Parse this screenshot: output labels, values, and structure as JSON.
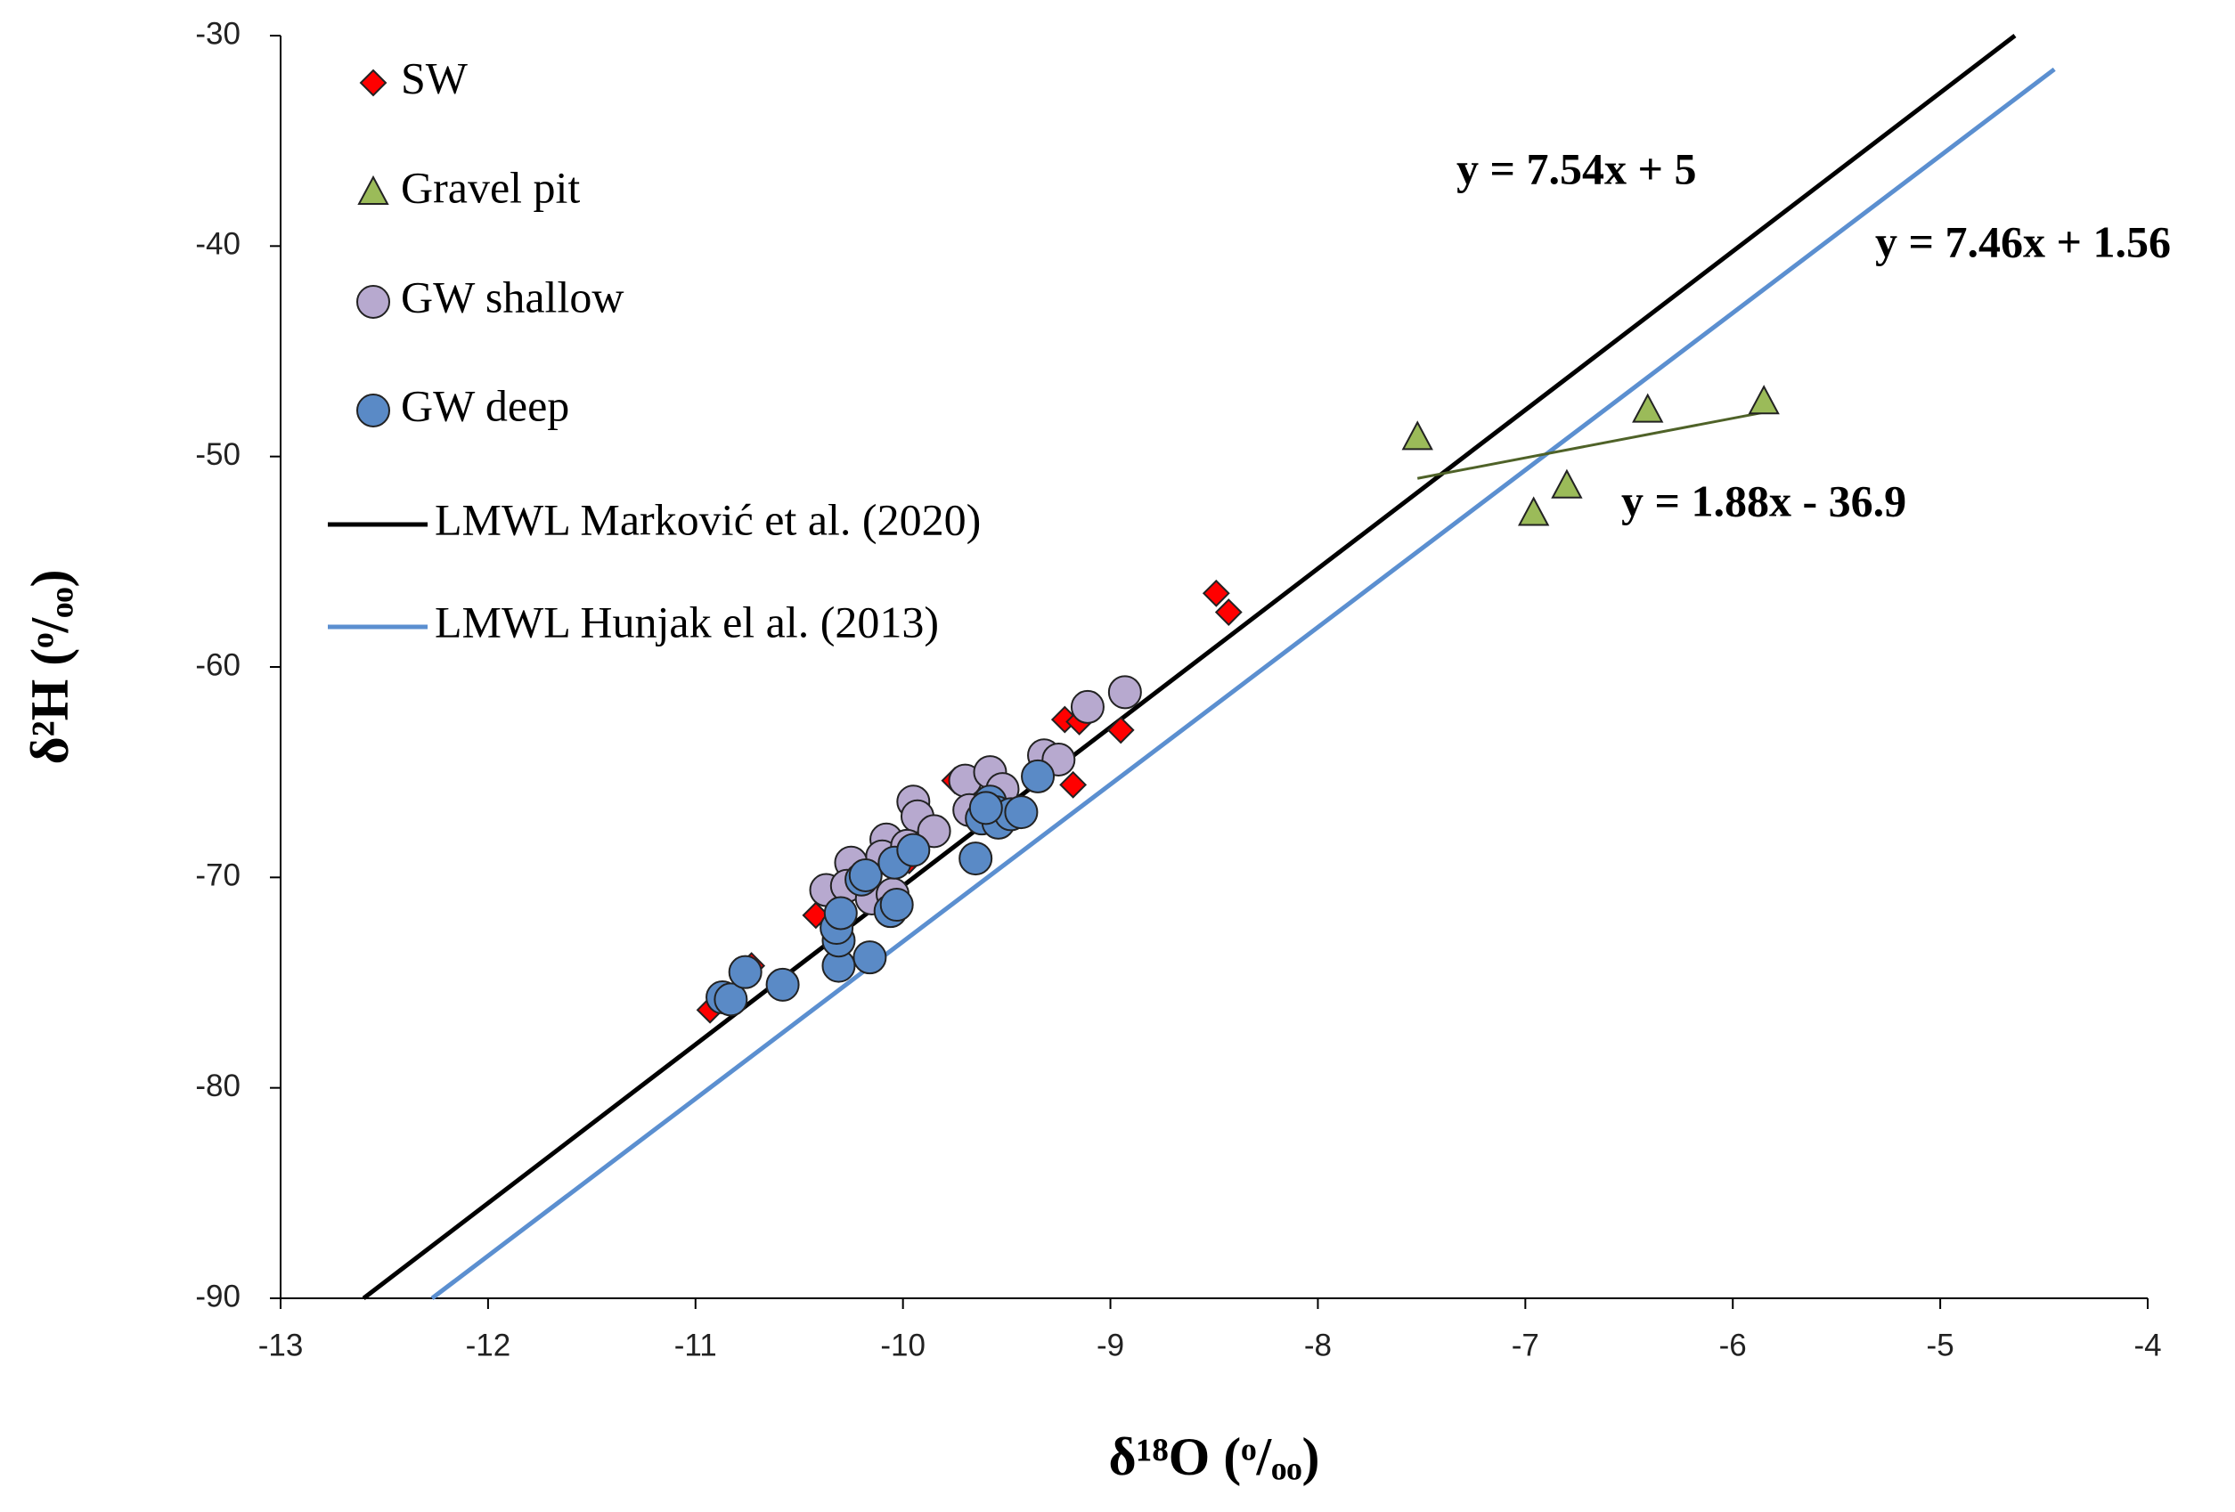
{
  "chart_data": {
    "type": "scatter",
    "x_label": "δ¹⁸O (ᵒ/ₒₒ)",
    "y_label": "δ²H (ᵒ/ₒₒ)",
    "xlim": [
      -13,
      -4
    ],
    "xticks": [
      -13,
      -12,
      -11,
      -10,
      -9,
      -8,
      -7,
      -6,
      -5,
      -4
    ],
    "ylim": [
      -90,
      -30
    ],
    "yticks": [
      -90,
      -80,
      -70,
      -60,
      -50,
      -40,
      -30
    ],
    "grid": false,
    "legend": "upper left",
    "series": [
      {
        "name": "SW",
        "marker": "diamond",
        "color": "#ff0000",
        "x": [
          -10.93,
          -10.73,
          -10.42,
          -9.75,
          -9.22,
          -9.15,
          -9.18,
          -8.95,
          -8.49,
          -8.43,
          -9.97
        ],
        "values": [
          -76.3,
          -74.2,
          -71.8,
          -65.4,
          -62.5,
          -62.6,
          -65.6,
          -63.0,
          -56.5,
          -57.4,
          -69.2
        ]
      },
      {
        "name": "Gravel pit",
        "marker": "triangle",
        "color": "#9bbb59",
        "x": [
          -7.52,
          -6.41,
          -5.85,
          -6.8,
          -6.96
        ],
        "values": [
          -49.1,
          -47.8,
          -47.4,
          -51.4,
          -52.7
        ]
      },
      {
        "name": "GW shallow",
        "marker": "circle",
        "color": "#b7a9cf",
        "x": [
          -10.37,
          -10.25,
          -10.27,
          -10.15,
          -10.08,
          -10.1,
          -9.95,
          -9.93,
          -9.85,
          -9.7,
          -9.58,
          -9.68,
          -9.52,
          -9.32,
          -9.25,
          -9.11,
          -8.93,
          -10.05,
          -9.98
        ],
        "values": [
          -70.6,
          -69.3,
          -70.4,
          -71.0,
          -68.2,
          -69.0,
          -66.4,
          -67.1,
          -67.8,
          -65.4,
          -65.0,
          -66.8,
          -65.8,
          -64.2,
          -64.4,
          -61.9,
          -61.2,
          -70.8,
          -68.5
        ]
      },
      {
        "name": "GW deep",
        "marker": "circle",
        "color": "#5a8ac6",
        "x": [
          -10.87,
          -10.83,
          -10.76,
          -10.58,
          -10.31,
          -10.31,
          -10.32,
          -10.3,
          -10.16,
          -10.2,
          -10.18,
          -10.06,
          -10.03,
          -10.04,
          -9.95,
          -9.65,
          -9.62,
          -9.58,
          -9.55,
          -9.54,
          -9.48,
          -9.43,
          -9.35,
          -9.6
        ],
        "values": [
          -75.7,
          -75.8,
          -74.5,
          -75.1,
          -74.2,
          -73.0,
          -72.4,
          -71.7,
          -73.8,
          -70.1,
          -69.9,
          -71.6,
          -71.3,
          -69.3,
          -68.7,
          -69.1,
          -67.2,
          -66.4,
          -66.9,
          -67.4,
          -67.0,
          -66.9,
          -65.2,
          -66.7
        ]
      },
      {
        "name": "LMWL Marković et al. (2020)",
        "marker": "line",
        "color": "#000000",
        "x": [
          -12.6,
          -4.64
        ],
        "values": [
          -90,
          -30
        ]
      },
      {
        "name": "LMWL Hunjak el al. (2013)",
        "marker": "line",
        "color": "#5b8fd0",
        "x": [
          -12.27,
          -4.45
        ],
        "values": [
          -90,
          -31.6
        ]
      },
      {
        "marker": "line",
        "color": "#4f6228",
        "x": [
          -7.52,
          -5.85
        ],
        "values": [
          -51.04,
          -47.9
        ]
      }
    ],
    "annotations": [
      {
        "text": "y = 7.54x + 5",
        "color": "#000000"
      },
      {
        "text": "y = 7.46x + 1.56",
        "color": "#5b8fd0"
      },
      {
        "text": "y = 1.88x - 36.9",
        "color": "#9bbb59"
      }
    ]
  }
}
